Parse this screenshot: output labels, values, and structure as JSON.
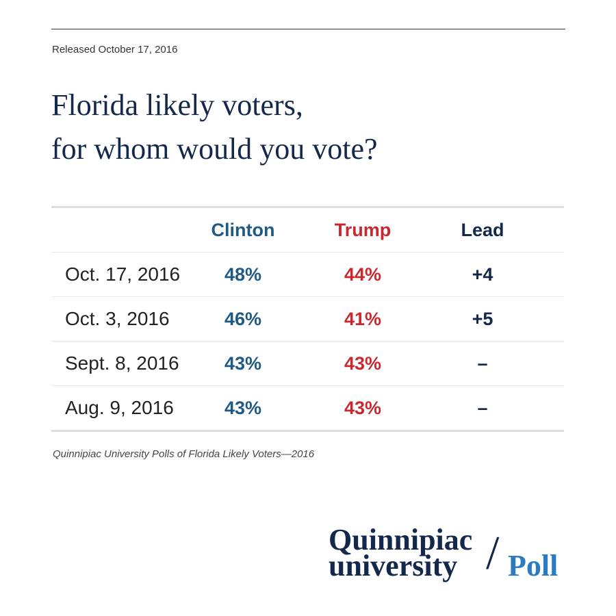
{
  "released": "Released October 17, 2016",
  "title": [
    "Florida likely voters,",
    "for whom would you vote?"
  ],
  "table": {
    "header": [
      "Clinton",
      "Trump",
      "Lead"
    ],
    "rows": [
      [
        "Oct. 17, 2016",
        "48%",
        "44%",
        "+4"
      ],
      [
        "Oct. 3, 2016",
        "46%",
        "41%",
        "+5"
      ],
      [
        "Sept. 8, 2016",
        "43%",
        "43%",
        "–"
      ],
      [
        "Aug. 9, 2016",
        "43%",
        "43%",
        "–"
      ]
    ]
  },
  "source": "Quinnipiac University Polls of Florida Likely Voters—2016",
  "logo": {
    "line1": "Quinnipiac",
    "line2": "university",
    "slash": "/",
    "poll": "Poll"
  }
}
